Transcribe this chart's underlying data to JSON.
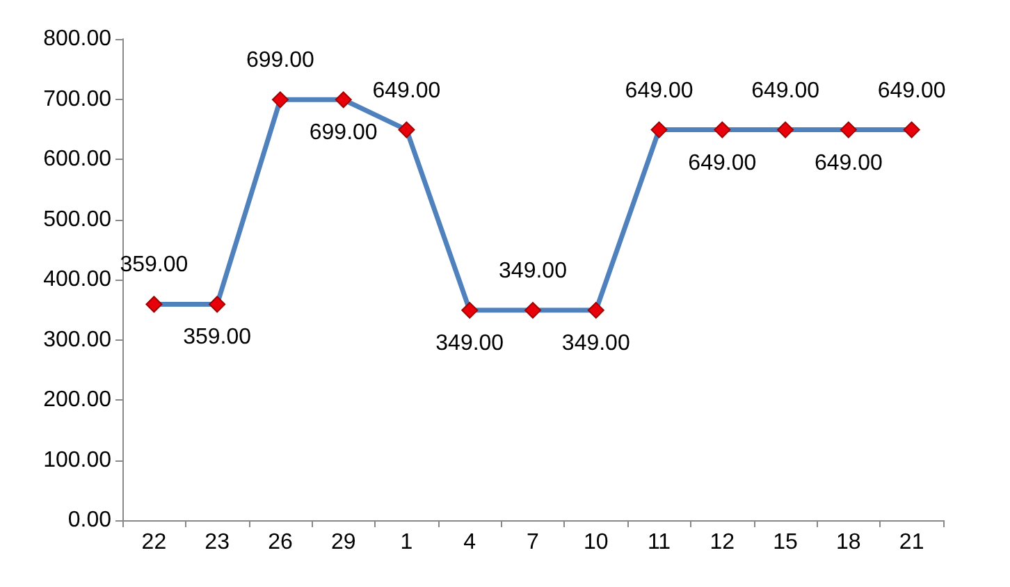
{
  "chart_data": {
    "type": "line",
    "categories": [
      "22",
      "23",
      "26",
      "29",
      "1",
      "4",
      "7",
      "10",
      "11",
      "12",
      "15",
      "18",
      "21"
    ],
    "series": [
      {
        "color": "#4f81bd",
        "values": [
          359,
          359,
          699,
          699,
          649,
          349,
          349,
          349,
          649,
          649,
          649,
          649,
          649
        ],
        "value_labels": [
          "359.00",
          "359.00",
          "699.00",
          "699.00",
          "649.00",
          "349.00",
          "349.00",
          "349.00",
          "649.00",
          "649.00",
          "649.00",
          "649.00",
          "649.00"
        ]
      }
    ],
    "ylim": [
      0,
      800
    ],
    "yticks": [
      {
        "value": 0,
        "label": "0.00"
      },
      {
        "value": 100,
        "label": "100.00"
      },
      {
        "value": 200,
        "label": "200.00"
      },
      {
        "value": 300,
        "label": "300.00"
      },
      {
        "value": 400,
        "label": "400.00"
      },
      {
        "value": 500,
        "label": "500.00"
      },
      {
        "value": 600,
        "label": "600.00"
      },
      {
        "value": 700,
        "label": "700.00"
      },
      {
        "value": 800,
        "label": "800.00"
      }
    ],
    "grid": false,
    "marker": "diamond",
    "line_style": "solid"
  }
}
